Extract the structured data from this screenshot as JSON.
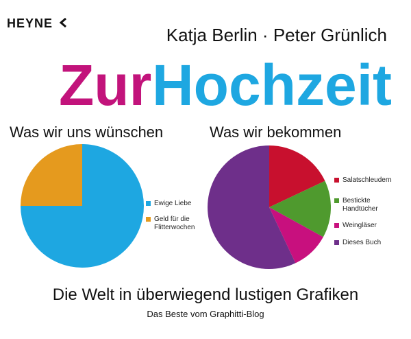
{
  "cover": {
    "publisher": "HEYNE",
    "authors": "Katja Berlin · Peter Grünlich",
    "title_first": "Zur",
    "title_second": "Hochzeit",
    "subtitle": "Die Welt in überwiegend lustigen Grafiken",
    "tagline": "Das Beste vom Graphitti-Blog"
  },
  "chart_data": [
    {
      "type": "pie",
      "title": "Was wir uns wünschen",
      "categories": [
        "Ewige Liebe",
        "Geld für die Flitterwochen"
      ],
      "values": [
        75,
        25
      ],
      "colors": [
        "#1ea7e1",
        "#e59a1e"
      ]
    },
    {
      "type": "pie",
      "title": "Was wir bekommen",
      "categories": [
        "Salatschleudern",
        "Bestickte Handtücher",
        "Weingläser",
        "Dieses Buch"
      ],
      "values": [
        18,
        15,
        10,
        57
      ],
      "colors": [
        "#c8102e",
        "#4f9a2e",
        "#c8107e",
        "#6e2f8a"
      ]
    }
  ]
}
